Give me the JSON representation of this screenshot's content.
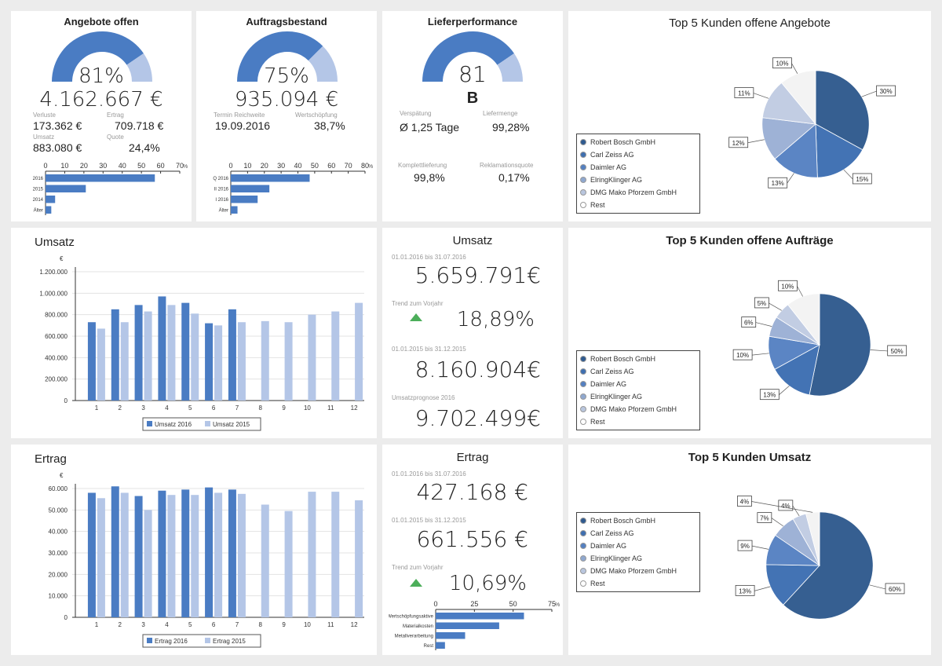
{
  "colors": {
    "dark": "#365f91",
    "mid": "#4a7cc3",
    "light": "#b4c6e7",
    "bg": "#ececec",
    "trend": "#4cae5a"
  },
  "angebote": {
    "title": "Angebote offen",
    "pct": "81%",
    "pct_value": 81,
    "amount": "4.162.667 €",
    "k1_label": "Verluste",
    "k1_val": "173.362 €",
    "k2_label": "Ertrag",
    "k2_val": "709.718 €",
    "k3_label": "Umsatz",
    "k3_val": "883.080 €",
    "k4_label": "Quote",
    "k4_val": "24,4%"
  },
  "auftrag": {
    "title": "Auftragsbestand",
    "pct": "75%",
    "pct_value": 75,
    "amount": "935.094 €",
    "k1_label": "Termin Reichweite",
    "k1_val": "19.09.2016",
    "k2_label": "Wertschöpfung",
    "k2_val": "38,7%"
  },
  "liefer": {
    "title": "Lieferperformance",
    "score": "81",
    "score_value": 81,
    "grade": "B",
    "k1_label": "Verspätung",
    "k1_val": "Ø 1,25 Tage",
    "k2_label": "Liefermenge",
    "k2_val": "99,28%",
    "k3_label": "Komplettlieferung",
    "k3_val": "99,8%",
    "k4_label": "Reklamationsquote",
    "k4_val": "0,17%"
  },
  "umsatz_kpi": {
    "title": "Umsatz",
    "l1": "01.01.2016 bis 31.07.2016",
    "v1": "5.659.791€",
    "l2": "Trend zum Vorjahr",
    "v2": "18,89%",
    "l3": "01.01.2015 bis 31.12.2015",
    "v3": "8.160.904€",
    "l4": "Umsatzprognose 2016",
    "v4": "9.702.499€"
  },
  "ertrag_kpi": {
    "title": "Ertrag",
    "l1": "01.01.2016 bis 31.07.2016",
    "v1": "427.168 €",
    "l2": "01.01.2015 bis 31.12.2015",
    "v2": "661.556 €",
    "l3": "Trend zum Vorjahr",
    "v3": "10,69%"
  },
  "umsatz_chart_title": "Umsatz",
  "ertrag_chart_title": "Ertrag",
  "pie1": {
    "title": "Top 5 Kunden offene Angebote"
  },
  "pie2": {
    "title": "Top 5 Kunden offene Aufträge"
  },
  "pie3": {
    "title": "Top 5 Kunden Umsatz"
  },
  "legend_items": [
    "Robert Bosch GmbH",
    "Carl Zeiss AG",
    "Daimler AG",
    "ElringKlinger AG",
    "DMG Mako Pforzem GmbH",
    "Rest"
  ],
  "chart_data": [
    {
      "type": "bar",
      "id": "angebote_bars",
      "categories": [
        "2016",
        "2015",
        "2014",
        "Älter"
      ],
      "values": [
        57,
        21,
        5,
        3
      ],
      "xlim": [
        0,
        70
      ],
      "xticks": [
        0,
        10,
        20,
        30,
        40,
        50,
        60,
        70
      ],
      "unit": "%"
    },
    {
      "type": "bar",
      "id": "auftrag_bars",
      "categories": [
        "Q 2016",
        "II 2016",
        "I 2016",
        "Älter"
      ],
      "values": [
        47,
        23,
        16,
        4
      ],
      "xlim": [
        0,
        80
      ],
      "xticks": [
        0,
        10,
        20,
        30,
        40,
        50,
        60,
        70,
        80
      ],
      "unit": "%"
    },
    {
      "type": "bar",
      "id": "umsatz_monthly",
      "categories": [
        "1",
        "2",
        "3",
        "4",
        "5",
        "6",
        "7",
        "8",
        "9",
        "10",
        "11",
        "12"
      ],
      "series": [
        {
          "name": "Umsatz 2016",
          "values": [
            730000,
            850000,
            890000,
            970000,
            910000,
            720000,
            850000,
            null,
            null,
            null,
            null,
            null
          ]
        },
        {
          "name": "Umsatz 2015",
          "values": [
            670000,
            730000,
            830000,
            890000,
            810000,
            700000,
            730000,
            740000,
            730000,
            800000,
            830000,
            910000
          ]
        }
      ],
      "ylabel": "€",
      "ylim": [
        0,
        1200000
      ],
      "yticks": [
        "0",
        "200.000",
        "400.000",
        "600.000",
        "800.000",
        "1.000.000",
        "1.200.000"
      ]
    },
    {
      "type": "bar",
      "id": "ertrag_monthly",
      "categories": [
        "1",
        "2",
        "3",
        "4",
        "5",
        "6",
        "7",
        "8",
        "9",
        "10",
        "11",
        "12"
      ],
      "series": [
        {
          "name": "Ertrag 2016",
          "values": [
            58000,
            61000,
            56500,
            59000,
            59500,
            60500,
            59500,
            null,
            null,
            null,
            null,
            null
          ]
        },
        {
          "name": "Ertrag 2015",
          "values": [
            55500,
            58000,
            50000,
            57000,
            57000,
            58000,
            57500,
            52500,
            49500,
            58500,
            58500,
            54500
          ]
        }
      ],
      "ylabel": "€",
      "ylim": [
        0,
        60000
      ],
      "yticks": [
        "0",
        "10.000",
        "20.000",
        "30.000",
        "40.000",
        "50.000",
        "60.000"
      ]
    },
    {
      "type": "bar",
      "id": "ertrag_bars",
      "categories": [
        "Wertschöpfungsaktive",
        "Materialkosten",
        "Metallverarbeitung",
        "Rest"
      ],
      "values": [
        57,
        41,
        19,
        6
      ],
      "xlim": [
        0,
        75
      ],
      "xticks": [
        0,
        25,
        50,
        75
      ],
      "unit": "%"
    },
    {
      "type": "pie",
      "id": "pie_angebote",
      "values": [
        30,
        15,
        13,
        12,
        11,
        10
      ],
      "labels": [
        "30%",
        "15%",
        "13%",
        "12%",
        "11%",
        "10%"
      ]
    },
    {
      "type": "pie",
      "id": "pie_auftraege",
      "values": [
        50,
        13,
        10,
        6,
        5,
        10
      ],
      "labels": [
        "50%",
        "13%",
        "10%",
        "6%",
        "5%",
        "10%"
      ]
    },
    {
      "type": "pie",
      "id": "pie_umsatz",
      "values": [
        60,
        13,
        9,
        7,
        4,
        4
      ],
      "labels": [
        "60%",
        "13%",
        "9%",
        "7%",
        "4%",
        "4%"
      ]
    }
  ]
}
